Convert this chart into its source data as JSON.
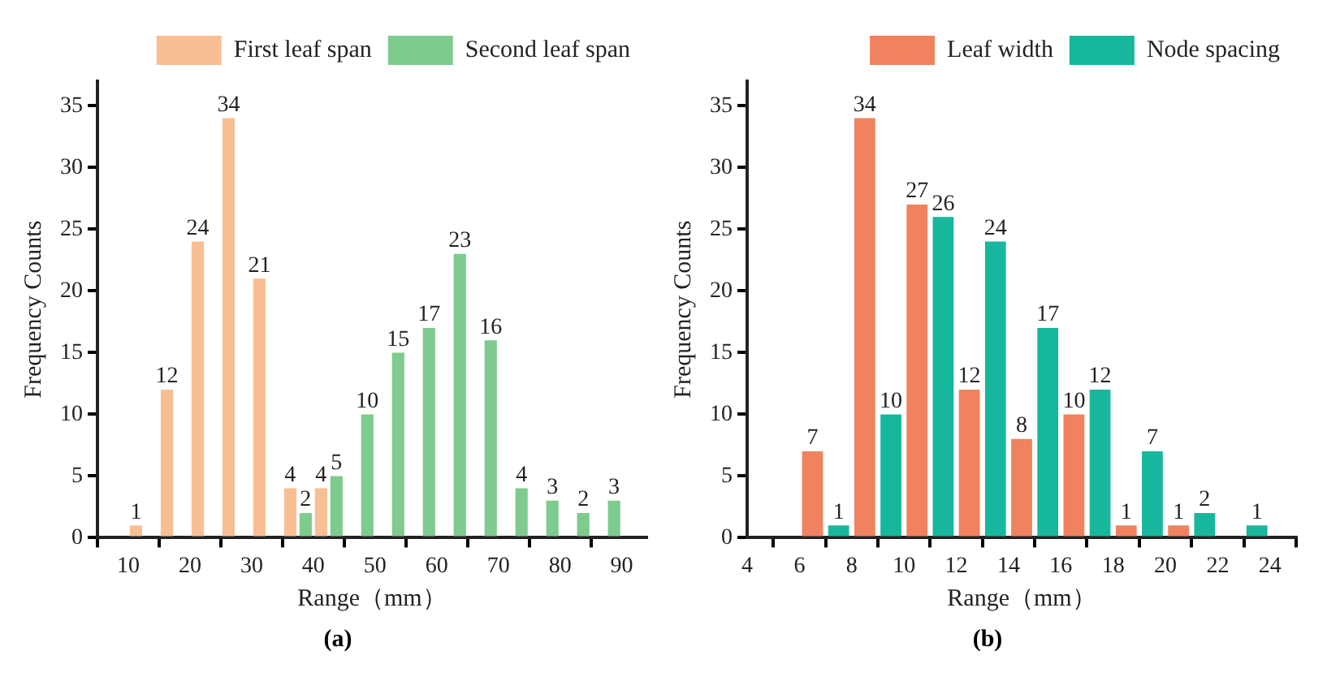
{
  "chart_data": [
    {
      "type": "histogram",
      "xlabel": "Range（mm）",
      "ylabel": "Frequency Counts",
      "annotations": [
        "(a)"
      ],
      "legend": "top right",
      "grid": false,
      "data_labels": true,
      "bins": [
        10,
        15,
        20,
        25,
        30,
        35,
        40,
        45,
        50,
        55,
        60,
        65,
        70,
        75,
        80,
        85,
        90
      ],
      "series": [
        {
          "name": "First leaf span",
          "color": "#f9bf94",
          "values": [
            1,
            12,
            24,
            34,
            21,
            4,
            4,
            null,
            null,
            null,
            null,
            null,
            null,
            null,
            null,
            null
          ]
        },
        {
          "name": "Second leaf span",
          "color": "#7ecb8e",
          "values": [
            null,
            null,
            null,
            null,
            null,
            2,
            5,
            10,
            15,
            17,
            23,
            16,
            4,
            3,
            2,
            3
          ]
        }
      ],
      "xlim": [
        5,
        94
      ],
      "xticks": [
        10,
        20,
        30,
        40,
        50,
        60,
        70,
        80,
        90
      ],
      "ylim": [
        0,
        37
      ],
      "yticks": [
        0,
        5,
        10,
        15,
        20,
        25,
        30,
        35
      ]
    },
    {
      "type": "histogram",
      "xlabel": "Range（mm）",
      "ylabel": "Frequency Counts",
      "annotations": [
        "(b)"
      ],
      "legend": "top right",
      "grid": false,
      "data_labels": true,
      "bins": [
        6,
        8,
        10,
        12,
        14,
        16,
        18,
        20,
        22,
        24
      ],
      "series": [
        {
          "name": "Leaf width",
          "color": "#f0825f",
          "values": [
            7,
            34,
            27,
            12,
            8,
            10,
            1,
            1,
            null
          ]
        },
        {
          "name": "Node spacing",
          "color": "#17b79d",
          "values": [
            1,
            10,
            26,
            24,
            17,
            12,
            7,
            2,
            1
          ]
        }
      ],
      "xlim": [
        4,
        25
      ],
      "xticks": [
        4,
        6,
        8,
        10,
        12,
        14,
        16,
        18,
        20,
        22,
        24
      ],
      "ylim": [
        0,
        37
      ],
      "yticks": [
        0,
        5,
        10,
        15,
        20,
        25,
        30,
        35
      ]
    }
  ]
}
